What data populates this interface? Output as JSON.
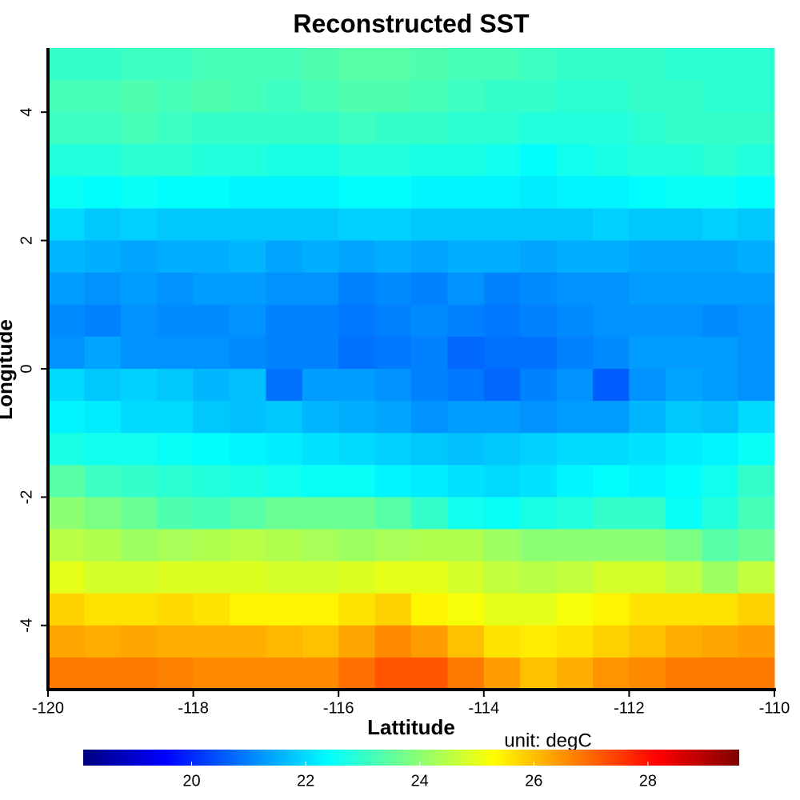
{
  "chart_data": {
    "type": "heatmap",
    "title": "Reconstructed SST",
    "x_label": "Lattitude",
    "y_label": "Longitude",
    "colorbar_label": "unit: degC",
    "xlim": [
      -120,
      -110
    ],
    "ylim": [
      -5,
      5
    ],
    "xticks": [
      -120,
      -118,
      -116,
      -114,
      -112,
      -110
    ],
    "yticks": [
      -4,
      -2,
      0,
      2,
      4
    ],
    "clim": [
      18.1,
      29.6
    ],
    "cticks": [
      20,
      22,
      24,
      26,
      28
    ],
    "colorscale": [
      "#00007f",
      "#0000ff",
      "#007fff",
      "#00ffff",
      "#7fff7f",
      "#ffff00",
      "#ff7f00",
      "#ff0000",
      "#7f0000"
    ],
    "x": [
      -119.75,
      -119.25,
      -118.75,
      -118.25,
      -117.75,
      -117.25,
      -116.75,
      -116.25,
      -115.75,
      -115.25,
      -114.75,
      -114.25,
      -113.75,
      -113.25,
      -112.75,
      -112.25,
      -111.75,
      -111.25,
      -110.75,
      -110.25
    ],
    "y": [
      4.75,
      4.25,
      3.75,
      3.25,
      2.75,
      2.25,
      1.75,
      1.25,
      0.75,
      0.25,
      -0.25,
      -0.75,
      -1.25,
      -1.75,
      -2.25,
      -2.75,
      -3.25,
      -3.75,
      -4.25,
      -4.75
    ],
    "z": [
      [
        23.0,
        23.0,
        23.1,
        23.1,
        23.2,
        23.2,
        23.2,
        23.3,
        23.4,
        23.4,
        23.3,
        23.2,
        23.2,
        23.1,
        23.0,
        23.0,
        23.0,
        22.9,
        22.9,
        22.9
      ],
      [
        23.2,
        23.2,
        23.3,
        23.2,
        23.3,
        23.2,
        23.1,
        23.2,
        23.3,
        23.3,
        23.2,
        23.1,
        23.0,
        23.0,
        22.9,
        22.9,
        23.0,
        23.0,
        22.9,
        22.9
      ],
      [
        23.1,
        23.1,
        23.2,
        23.1,
        23.0,
        23.0,
        23.0,
        23.0,
        23.1,
        23.0,
        23.0,
        22.9,
        22.9,
        22.8,
        22.8,
        22.8,
        22.9,
        23.0,
        23.0,
        23.0
      ],
      [
        22.8,
        22.8,
        22.9,
        22.9,
        22.8,
        22.8,
        22.7,
        22.7,
        22.8,
        22.8,
        22.7,
        22.7,
        22.6,
        22.4,
        22.6,
        22.7,
        22.8,
        22.8,
        22.9,
        22.8
      ],
      [
        22.5,
        22.4,
        22.5,
        22.4,
        22.4,
        22.3,
        22.3,
        22.3,
        22.4,
        22.4,
        22.3,
        22.3,
        22.3,
        22.2,
        22.3,
        22.3,
        22.4,
        22.5,
        22.5,
        22.4
      ],
      [
        22.0,
        21.8,
        21.9,
        21.8,
        21.8,
        21.8,
        21.8,
        21.8,
        21.9,
        21.9,
        21.8,
        21.8,
        21.8,
        21.8,
        21.8,
        21.9,
        21.8,
        21.8,
        21.9,
        21.8
      ],
      [
        21.6,
        21.5,
        21.4,
        21.5,
        21.5,
        21.6,
        21.4,
        21.5,
        21.4,
        21.5,
        21.4,
        21.5,
        21.5,
        21.4,
        21.5,
        21.5,
        21.4,
        21.4,
        21.4,
        21.5
      ],
      [
        21.3,
        21.2,
        21.3,
        21.2,
        21.3,
        21.3,
        21.2,
        21.2,
        21.0,
        21.1,
        21.0,
        21.2,
        21.0,
        21.1,
        21.2,
        21.2,
        21.3,
        21.3,
        21.3,
        21.3
      ],
      [
        21.1,
        21.0,
        21.2,
        21.1,
        21.1,
        21.2,
        21.0,
        21.0,
        20.9,
        21.0,
        21.1,
        21.0,
        20.9,
        21.0,
        21.1,
        21.2,
        21.2,
        21.2,
        21.1,
        21.2
      ],
      [
        21.2,
        21.4,
        21.2,
        21.2,
        21.2,
        21.1,
        21.0,
        21.0,
        20.8,
        20.9,
        21.0,
        20.7,
        20.8,
        20.8,
        21.0,
        21.1,
        21.3,
        21.3,
        21.3,
        21.2
      ],
      [
        22.0,
        21.8,
        21.9,
        21.8,
        21.6,
        21.7,
        20.8,
        21.3,
        21.3,
        21.2,
        21.0,
        20.9,
        20.7,
        21.0,
        21.2,
        20.6,
        21.2,
        21.4,
        21.3,
        21.2
      ],
      [
        22.3,
        22.2,
        22.0,
        22.0,
        21.8,
        21.7,
        21.8,
        21.6,
        21.5,
        21.4,
        21.2,
        21.3,
        21.3,
        21.2,
        21.3,
        21.3,
        21.6,
        21.8,
        21.7,
        22.0
      ],
      [
        22.7,
        22.6,
        22.6,
        22.5,
        22.4,
        22.3,
        22.2,
        22.1,
        22.0,
        21.9,
        21.8,
        21.7,
        21.8,
        21.9,
        22.0,
        22.0,
        22.1,
        22.2,
        22.3,
        22.5
      ],
      [
        23.4,
        23.1,
        23.0,
        22.9,
        22.8,
        22.7,
        22.6,
        22.5,
        22.5,
        22.3,
        22.2,
        22.1,
        22.0,
        22.1,
        22.3,
        22.4,
        22.3,
        22.4,
        22.6,
        23.0
      ],
      [
        24.0,
        23.8,
        23.6,
        23.3,
        23.2,
        23.4,
        23.6,
        23.6,
        23.6,
        23.4,
        23.0,
        22.6,
        22.5,
        22.7,
        22.8,
        23.0,
        23.0,
        22.5,
        22.8,
        23.2
      ],
      [
        24.5,
        24.4,
        24.2,
        24.3,
        24.4,
        24.5,
        24.4,
        24.3,
        24.2,
        24.3,
        24.4,
        24.4,
        24.2,
        24.0,
        24.0,
        24.0,
        24.0,
        23.8,
        23.4,
        23.6
      ],
      [
        25.0,
        24.8,
        24.8,
        24.9,
        24.9,
        24.9,
        24.8,
        24.8,
        24.9,
        25.0,
        25.0,
        24.8,
        24.6,
        24.5,
        24.6,
        24.8,
        24.8,
        24.6,
        24.2,
        24.6
      ],
      [
        25.8,
        25.6,
        25.6,
        25.7,
        25.6,
        25.4,
        25.4,
        25.4,
        25.6,
        25.8,
        25.4,
        25.2,
        25.0,
        25.0,
        25.2,
        25.4,
        25.6,
        25.6,
        25.6,
        25.8
      ],
      [
        26.3,
        26.2,
        26.3,
        26.2,
        26.2,
        26.2,
        26.1,
        26.0,
        26.3,
        26.6,
        26.4,
        26.0,
        25.6,
        25.5,
        25.6,
        25.8,
        26.0,
        26.2,
        26.3,
        26.4
      ],
      [
        26.8,
        26.8,
        26.8,
        26.7,
        26.6,
        26.6,
        26.6,
        26.6,
        26.9,
        27.2,
        27.2,
        26.8,
        26.4,
        26.0,
        26.2,
        26.5,
        26.6,
        26.8,
        26.8,
        26.8
      ]
    ]
  }
}
